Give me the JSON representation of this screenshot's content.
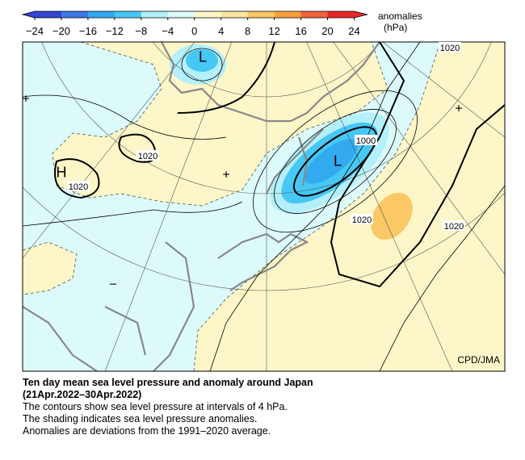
{
  "colorbar": {
    "title": "anomalies",
    "unit": "(hPa)",
    "ticks": [
      "−24",
      "−20",
      "−16",
      "−12",
      "−8",
      "−4",
      "0",
      "4",
      "8",
      "12",
      "16",
      "20",
      "24"
    ],
    "colors": [
      "#3246d2",
      "#3c78e6",
      "#32aaf0",
      "#46c8f5",
      "#b4f0fa",
      "#dcfafa",
      "#fcf6c8",
      "#fae6a0",
      "#fac864",
      "#f8a03c",
      "#f0643c",
      "#e62828"
    ]
  },
  "map": {
    "labels": [
      "1020",
      "1020",
      "1020",
      "1000",
      "1020",
      "1020",
      "L",
      "L",
      "H",
      "+",
      "+",
      "+",
      "−"
    ],
    "credit": "CPD/JMA"
  },
  "caption": {
    "title": "Ten day mean sea level pressure and anomaly around Japan",
    "period": "(21Apr.2022–30Apr.2022)",
    "lines": [
      "The contours show sea level pressure at intervals of 4 hPa.",
      "The shading indicates sea level pressure anomalies.",
      "Anomalies are deviations from the 1991–2020 average."
    ]
  }
}
